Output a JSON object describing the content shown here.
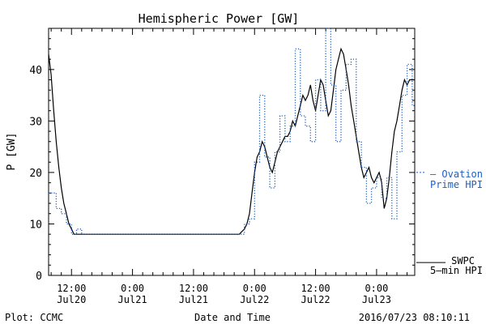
{
  "chart_data": {
    "type": "line",
    "title": "Hemispheric Power [GW]",
    "xlabel": "Date and Time",
    "ylabel": "P [GW]",
    "ylim": [
      0,
      48
    ],
    "xlim": [
      7.5,
      79.5
    ],
    "grid": false,
    "y_ticks": [
      0,
      10,
      20,
      30,
      40
    ],
    "x_ticks": [
      {
        "h": 12,
        "time": "12:00",
        "date": "Jul20"
      },
      {
        "h": 24,
        "time": "0:00",
        "date": "Jul21"
      },
      {
        "h": 36,
        "time": "12:00",
        "date": "Jul21"
      },
      {
        "h": 48,
        "time": "0:00",
        "date": "Jul22"
      },
      {
        "h": 60,
        "time": "12:00",
        "date": "Jul22"
      },
      {
        "h": 72,
        "time": "0:00",
        "date": "Jul23"
      }
    ],
    "legend": {
      "ovation": {
        "line1": "– Ovation",
        "line2": "Prime HPI",
        "level": 20
      },
      "swpc": {
        "line1": "SWPC",
        "line2": "5–min HPI",
        "level": 2.5
      }
    },
    "series": [
      {
        "name": "SWPC 5-min HPI",
        "color": "#000000",
        "style": "solid",
        "x": [
          7.5,
          8,
          8.5,
          9,
          9.5,
          10,
          10.5,
          11,
          11.5,
          12,
          12.5,
          13,
          13.5,
          14,
          14.5,
          15,
          20,
          25,
          30,
          35,
          40,
          45,
          46,
          46.5,
          47,
          47.5,
          48,
          48.5,
          49,
          49.5,
          50,
          50.5,
          51,
          51.5,
          52,
          52.5,
          53,
          53.5,
          54,
          54.5,
          55,
          55.5,
          56,
          56.5,
          57,
          57.5,
          58,
          58.5,
          59,
          59.5,
          60,
          60.5,
          61,
          61.5,
          62,
          62.5,
          63,
          63.5,
          64,
          64.5,
          65,
          65.5,
          66,
          66.5,
          67,
          67.5,
          68,
          68.5,
          69,
          69.5,
          70,
          70.5,
          71,
          71.5,
          72,
          72.5,
          73,
          73.5,
          74,
          74.5,
          75,
          75.5,
          76,
          76.5,
          77,
          77.5,
          78,
          78.5,
          79,
          79.5
        ],
        "y": [
          43,
          39,
          32,
          26,
          21,
          17,
          14,
          12,
          10,
          9,
          8,
          8,
          8,
          8,
          8,
          8,
          8,
          8,
          8,
          8,
          8,
          8,
          9,
          10,
          12,
          16,
          20,
          23,
          24,
          26,
          25,
          23,
          21,
          20,
          22,
          24,
          25,
          26,
          27,
          27,
          28,
          30,
          29,
          31,
          33,
          35,
          34,
          35,
          37,
          34,
          32,
          35,
          38,
          37,
          34,
          31,
          32,
          36,
          40,
          42,
          44,
          43,
          40,
          37,
          33,
          30,
          27,
          24,
          21,
          19,
          20,
          21,
          19,
          18,
          19,
          20,
          18,
          13,
          15,
          19,
          24,
          28,
          30,
          33,
          36,
          38,
          37,
          38,
          38,
          38
        ]
      },
      {
        "name": "Ovation Prime HPI",
        "color": "#1f5fbf",
        "style": "dotted",
        "x": [
          7.5,
          8,
          9,
          10,
          11,
          12,
          13,
          14,
          15,
          20,
          30,
          40,
          45,
          46,
          47,
          48,
          49,
          50,
          51,
          52,
          53,
          54,
          55,
          56,
          57,
          58,
          59,
          60,
          61,
          62,
          63,
          64,
          65,
          66,
          67,
          68,
          69,
          70,
          71,
          72,
          73,
          74,
          75,
          76,
          77,
          78,
          79,
          79.5
        ],
        "y": [
          16,
          16,
          13,
          12,
          10,
          8,
          9,
          8,
          8,
          8,
          8,
          8,
          8,
          10,
          11,
          22,
          35,
          23,
          17,
          24,
          31,
          26,
          29,
          44,
          31,
          29,
          26,
          38,
          32,
          48,
          37,
          26,
          36,
          41,
          42,
          26,
          21,
          14,
          17,
          19,
          15,
          19,
          11,
          24,
          35,
          41,
          33,
          33
        ]
      }
    ]
  }
}
